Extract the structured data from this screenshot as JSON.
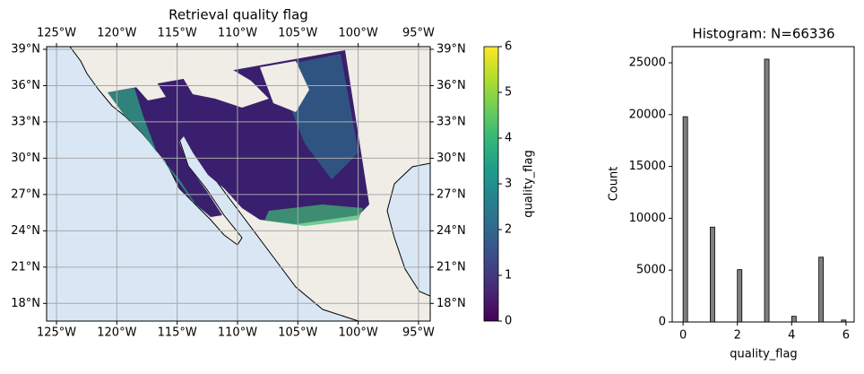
{
  "chart_data": [
    {
      "type": "map",
      "title": "Retrieval quality flag",
      "xlim": [
        -125.82,
        -94.03
      ],
      "ylim": [
        16.54,
        39.22
      ],
      "xticks": [
        {
          "value": -125,
          "label": "125°W"
        },
        {
          "value": -120,
          "label": "120°W"
        },
        {
          "value": -115,
          "label": "115°W"
        },
        {
          "value": -110,
          "label": "110°W"
        },
        {
          "value": -105,
          "label": "105°W"
        },
        {
          "value": -100,
          "label": "100°W"
        },
        {
          "value": -95,
          "label": "95°W"
        }
      ],
      "yticks": [
        {
          "value": 18,
          "label": "18°N"
        },
        {
          "value": 21,
          "label": "21°N"
        },
        {
          "value": 24,
          "label": "24°N"
        },
        {
          "value": 27,
          "label": "27°N"
        },
        {
          "value": 30,
          "label": "30°N"
        },
        {
          "value": 33,
          "label": "33°N"
        },
        {
          "value": 36,
          "label": "36°N"
        },
        {
          "value": 39,
          "label": "39°N"
        }
      ],
      "grid": true,
      "colorbar": {
        "label": "quality_flag",
        "colormap": "viridis",
        "lim": [
          0,
          6
        ],
        "ticks": [
          0,
          1,
          2,
          3,
          4,
          5,
          6
        ]
      }
    },
    {
      "type": "histogram",
      "title": "Histogram: N=66336",
      "xlabel": "quality_flag",
      "ylabel": "Count",
      "bins": [
        0,
        0.1667,
        0.3333,
        0.5,
        0.6667,
        0.8333,
        1,
        1.1667,
        1.3333,
        1.5,
        1.6667,
        1.8333,
        2,
        2.1667,
        2.3333,
        2.5,
        2.6667,
        2.8333,
        3,
        3.1667,
        3.3333,
        3.5,
        3.6667,
        3.8333,
        4,
        4.1667,
        4.3333,
        4.5,
        4.6667,
        4.8333,
        5,
        5.1667,
        5.3333,
        5.5,
        5.6667,
        5.8333,
        6
      ],
      "values": [
        19800,
        0,
        0,
        0,
        0,
        0,
        9150,
        0,
        0,
        0,
        0,
        0,
        5050,
        0,
        0,
        0,
        0,
        0,
        25350,
        0,
        0,
        0,
        0,
        0,
        550,
        0,
        0,
        0,
        0,
        0,
        6250,
        0,
        0,
        0,
        0,
        186
      ],
      "color": "#7f7f7f",
      "xlim": [
        -0.4,
        6.3
      ],
      "ylim": [
        0,
        26557
      ],
      "xticks": [
        0,
        2,
        4,
        6
      ],
      "yticks": [
        0,
        5000,
        10000,
        15000,
        20000,
        25000
      ]
    }
  ]
}
